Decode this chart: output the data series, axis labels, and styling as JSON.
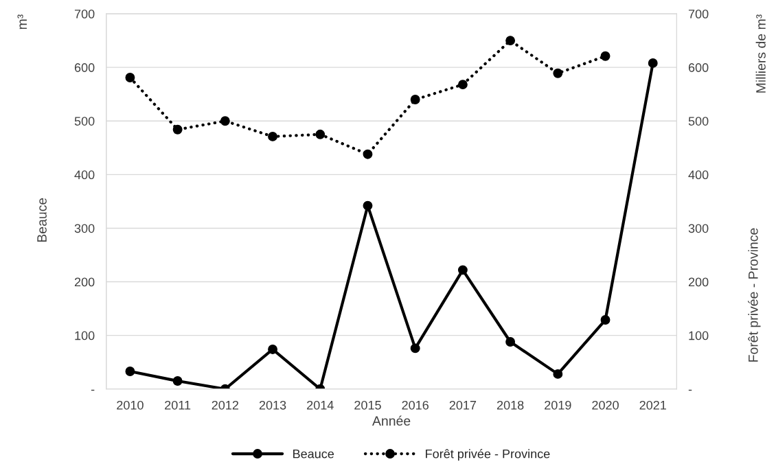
{
  "chart_data": {
    "type": "line",
    "categories": [
      "2010",
      "2011",
      "2012",
      "2013",
      "2014",
      "2015",
      "2016",
      "2017",
      "2018",
      "2019",
      "2020",
      "2021"
    ],
    "series": [
      {
        "name": "Beauce",
        "color": "#000000",
        "line_style": "solid",
        "values": [
          33,
          15,
          0,
          74,
          0,
          342,
          76,
          222,
          88,
          28,
          129,
          608
        ]
      },
      {
        "name": "Forêt privée - Province",
        "color": "#000000",
        "line_style": "dotted",
        "values": [
          581,
          484,
          500,
          471,
          475,
          438,
          540,
          568,
          650,
          589,
          621,
          null
        ]
      }
    ],
    "xlabel": "Année",
    "ylabel": "Beauce",
    "y2label": "Forêt privée - Province",
    "annotations": [
      "m³",
      "Milliers de m³"
    ],
    "ylim": [
      0,
      700
    ],
    "yticks": [
      {
        "value": 0,
        "label": "-"
      },
      100,
      200,
      300,
      400,
      500,
      600,
      700
    ],
    "y2lim": [
      0,
      700
    ],
    "y2ticks": [
      {
        "value": 0,
        "label": "-"
      },
      100,
      200,
      300,
      400,
      500,
      600,
      700
    ],
    "grid": "y",
    "legend": "bottom",
    "marker": "circle"
  }
}
